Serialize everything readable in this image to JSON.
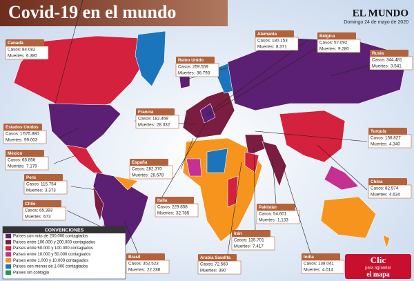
{
  "header": {
    "title": "Covid-19 en el mundo",
    "brand": "EL MUNDO",
    "date": "Domingo 24 de mayo de 2020"
  },
  "labels": {
    "cases": "Casos:",
    "deaths": "Muertes:"
  },
  "countries": [
    {
      "name": "Canadá",
      "cases": "84.082",
      "deaths": "6.380"
    },
    {
      "name": "Reino Unido",
      "cases": "259.559",
      "deaths": "36.793"
    },
    {
      "name": "Alemania",
      "cases": "180.153",
      "deaths": "8.371"
    },
    {
      "name": "Bélgica",
      "cases": "57.092",
      "deaths": "9.280"
    },
    {
      "name": "Rusia",
      "cases": "344.481",
      "deaths": "3.541"
    },
    {
      "name": "Estados Unidos",
      "cases": "1'675.880",
      "deaths": "99.003"
    },
    {
      "name": "Francia",
      "cases": "182.469",
      "deaths": "28.332"
    },
    {
      "name": "Turquía",
      "cases": "156.827",
      "deaths": "4.340"
    },
    {
      "name": "México",
      "cases": "65.856",
      "deaths": "7.179"
    },
    {
      "name": "España",
      "cases": "282.370",
      "deaths": "28.678"
    },
    {
      "name": "Perú",
      "cases": "115.754",
      "deaths": "3.373"
    },
    {
      "name": "China",
      "cases": "82.974",
      "deaths": "4.634"
    },
    {
      "name": "Chile",
      "cases": "65.393",
      "deaths": "673"
    },
    {
      "name": "Italia",
      "cases": "229.858",
      "deaths": "32.785"
    },
    {
      "name": "Pakistán",
      "cases": "54.601",
      "deaths": "1.133"
    },
    {
      "name": "Irán",
      "cases": "135.701",
      "deaths": "7.417"
    },
    {
      "name": "Brasil",
      "cases": "352.523",
      "deaths": "22.288"
    },
    {
      "name": "Arabia Saudita",
      "cases": "72.560",
      "deaths": "390"
    },
    {
      "name": "India",
      "cases": "138.041",
      "deaths": "4.014"
    }
  ],
  "legend": {
    "title": "CONVENCIONES",
    "items": [
      {
        "label": "Países con más de 200.000 contagiados",
        "color": "#5b1f73"
      },
      {
        "label": "Países entre 100.000 y 200.000 contagiados",
        "color": "#7a1d40"
      },
      {
        "label": "Países entre 50.000 y 100.000 contagiados",
        "color": "#d4213d"
      },
      {
        "label": "Países entre 10.000 y 50.000 contagiados",
        "color": "#c43192"
      },
      {
        "label": "Países entre 1.000 y 10.000 contagiados",
        "color": "#f7941d"
      },
      {
        "label": "Países con menos de 1.000 contagiados",
        "color": "#1b75bc"
      },
      {
        "label": "Países sin contagio",
        "color": "#1f9a4a"
      }
    ]
  },
  "button": {
    "line1": "Clic",
    "line2": "para agrandar",
    "line3": "el mapa"
  }
}
